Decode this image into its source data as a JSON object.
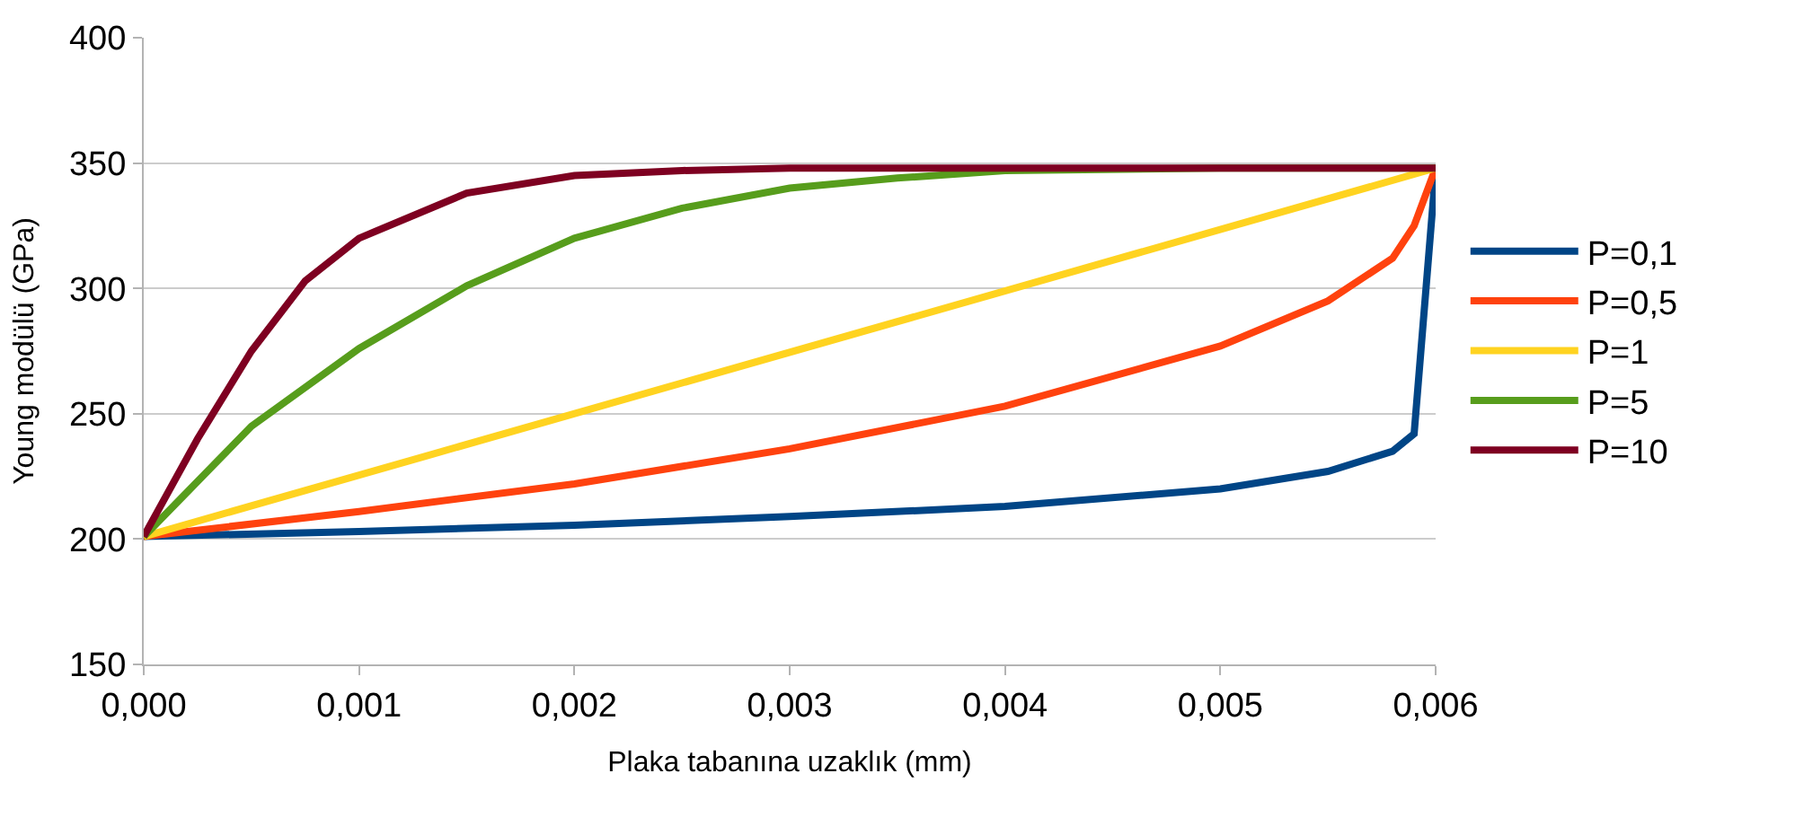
{
  "chart_data": {
    "type": "line",
    "xlabel": "Plaka tabanına uzaklık (mm)",
    "ylabel": "Young modülü (GPa)",
    "xlim": [
      0,
      0.006
    ],
    "ylim": [
      150,
      400
    ],
    "xticks": [
      {
        "value": 0,
        "label": "0,000"
      },
      {
        "value": 0.001,
        "label": "0,001"
      },
      {
        "value": 0.002,
        "label": "0,002"
      },
      {
        "value": 0.003,
        "label": "0,003"
      },
      {
        "value": 0.004,
        "label": "0,004"
      },
      {
        "value": 0.005,
        "label": "0,005"
      },
      {
        "value": 0.006,
        "label": "0,006"
      }
    ],
    "yticks": [
      150,
      200,
      250,
      300,
      350,
      400
    ],
    "grid": "y",
    "legend": "right",
    "marker": "none",
    "line_style": "solid",
    "series": [
      {
        "name": "P=0,1",
        "color": "#004586",
        "x": [
          0,
          0.001,
          0.002,
          0.003,
          0.004,
          0.005,
          0.0055,
          0.0058,
          0.0059,
          0.006
        ],
        "values": [
          201,
          203,
          205.5,
          209,
          213,
          220,
          227,
          235,
          242,
          347
        ]
      },
      {
        "name": "P=0,5",
        "color": "#ff420e",
        "x": [
          0,
          0.001,
          0.002,
          0.003,
          0.004,
          0.005,
          0.0055,
          0.0058,
          0.0059,
          0.006
        ],
        "values": [
          201,
          211,
          222,
          236,
          253,
          277,
          295,
          312,
          325,
          348
        ]
      },
      {
        "name": "P=1",
        "color": "#ffd320",
        "x": [
          0,
          0.006
        ],
        "values": [
          201,
          348
        ]
      },
      {
        "name": "P=5",
        "color": "#579d1c",
        "x": [
          0,
          0.0005,
          0.001,
          0.0015,
          0.002,
          0.0025,
          0.003,
          0.0035,
          0.004,
          0.005,
          0.006
        ],
        "values": [
          201,
          245,
          276,
          301,
          320,
          332,
          340,
          344,
          347,
          348,
          348
        ]
      },
      {
        "name": "P=10",
        "color": "#7e0021",
        "x": [
          0,
          0.00025,
          0.0005,
          0.00075,
          0.001,
          0.0015,
          0.002,
          0.0025,
          0.003,
          0.006
        ],
        "values": [
          201,
          240,
          275,
          303,
          320,
          338,
          345,
          347,
          348,
          348
        ]
      }
    ]
  }
}
